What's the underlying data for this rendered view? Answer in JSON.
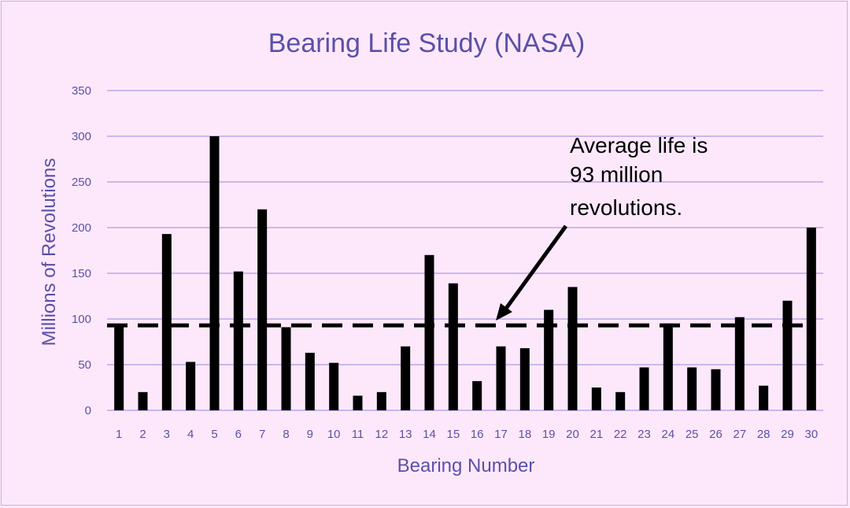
{
  "chart_data": {
    "type": "bar",
    "title": "Bearing Life Study (NASA)",
    "xlabel": "Bearing Number",
    "ylabel": "Millions of Revolutions",
    "ylim": [
      0,
      350
    ],
    "yticks": [
      0,
      50,
      100,
      150,
      200,
      250,
      300,
      350
    ],
    "grid": true,
    "legend": "none",
    "categories": [
      "1",
      "2",
      "3",
      "4",
      "5",
      "6",
      "7",
      "8",
      "9",
      "10",
      "11",
      "12",
      "13",
      "14",
      "15",
      "16",
      "17",
      "18",
      "19",
      "20",
      "21",
      "22",
      "23",
      "24",
      "25",
      "26",
      "27",
      "28",
      "29",
      "30"
    ],
    "values": [
      91,
      20,
      193,
      53,
      300,
      152,
      220,
      91,
      63,
      52,
      16,
      20,
      70,
      170,
      139,
      32,
      70,
      68,
      110,
      135,
      25,
      20,
      47,
      95,
      47,
      45,
      102,
      27,
      120,
      200
    ],
    "reference_line": {
      "value": 93,
      "style": "dashed"
    },
    "annotation": {
      "lines": [
        "Average life is",
        "93 million",
        "revolutions."
      ]
    },
    "colors": {
      "bars": "#000000",
      "grid": "#c9b8ee",
      "text": "#5b50a8",
      "background": "#fde8fb"
    }
  }
}
